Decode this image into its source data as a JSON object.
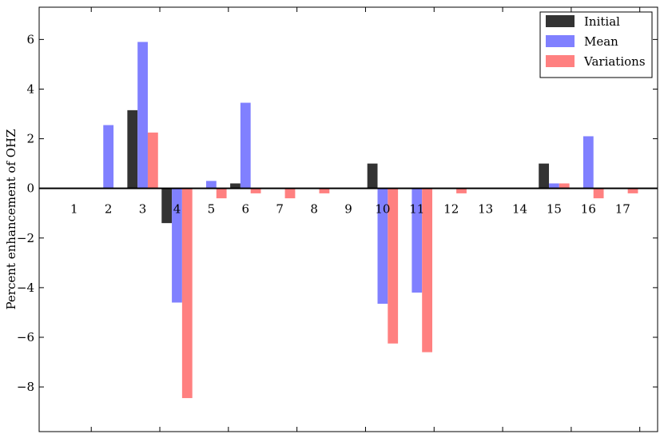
{
  "chart_data": {
    "type": "bar",
    "title": "",
    "xlabel": "",
    "ylabel": "Percent enhancement of OHZ",
    "ylim": [
      -9.8,
      7.3
    ],
    "yticks": [
      6,
      4,
      2,
      0,
      -2,
      -4,
      -6,
      -8
    ],
    "ytick_labels": [
      "6",
      "4",
      "2",
      "0",
      "−2",
      "−4",
      "−6",
      "−8"
    ],
    "categories": [
      "1",
      "2",
      "3",
      "4",
      "5",
      "6",
      "7",
      "8",
      "9",
      "10",
      "11",
      "12",
      "13",
      "14",
      "15",
      "16",
      "17"
    ],
    "grid": false,
    "legend_position": "top-right",
    "series": [
      {
        "name": "Initial",
        "color": "#333333",
        "values": [
          0,
          0,
          3.15,
          -1.4,
          0,
          0.2,
          0,
          0,
          0,
          1.0,
          0,
          0,
          0,
          0,
          1.0,
          0,
          0
        ]
      },
      {
        "name": "Mean",
        "color": "#8080ff",
        "values": [
          0,
          2.55,
          5.9,
          -4.6,
          0.3,
          3.45,
          0,
          0,
          0,
          -4.65,
          -4.2,
          0,
          0,
          0,
          0.2,
          2.1,
          0
        ]
      },
      {
        "name": "Variations",
        "color": "#ff8080",
        "values": [
          0,
          0,
          2.25,
          -8.45,
          -0.4,
          -0.2,
          -0.4,
          -0.2,
          0,
          -6.25,
          -6.6,
          -0.2,
          0,
          0,
          0.2,
          -0.4,
          -0.2
        ]
      }
    ]
  }
}
